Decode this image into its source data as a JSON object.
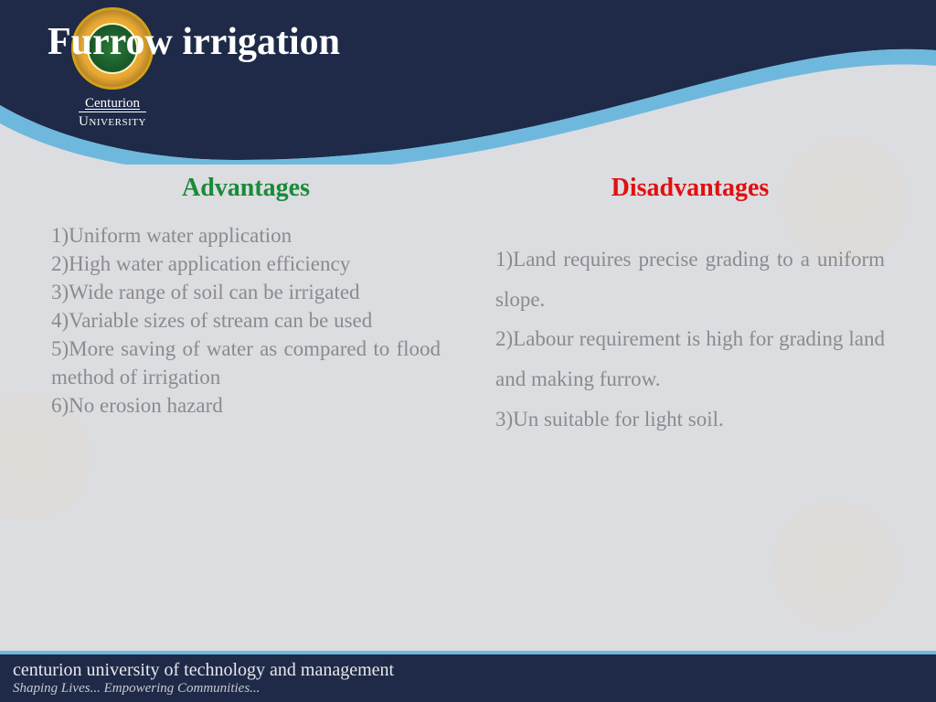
{
  "colors": {
    "header_dark": "#1e2a47",
    "swoosh_blue": "#6fb8dd",
    "body_bg": "#dcdde1",
    "title_text": "#ffffff",
    "advantages_heading": "#1a8a3a",
    "disadvantages_heading": "#e01010",
    "body_text": "#8a8a8f",
    "footer_text": "#e8e8ec",
    "footer_sub": "#c8c8d0"
  },
  "typography": {
    "title_fontsize": 42,
    "heading_fontsize": 28,
    "body_fontsize": 23,
    "footer_line1_fontsize": 20,
    "footer_line2_fontsize": 15,
    "font_family": "Georgia, serif"
  },
  "logo": {
    "line1": "Centurion",
    "line2": "University"
  },
  "title": "Furrow irrigation",
  "advantages": {
    "heading": "Advantages",
    "items_text": "1)Uniform water application\n2)High water application efficiency\n3)Wide range of soil can be irrigated\n4)Variable sizes of stream can be used\n5)More saving of water as compared to flood method of irrigation\n6)No erosion hazard"
  },
  "disadvantages": {
    "heading": "Disadvantages",
    "items_text": "1)Land requires precise grading to a uniform slope.\n2)Labour requirement is high for grading land and making furrow.\n3)Un suitable for light soil."
  },
  "footer": {
    "line1": "centurion university of technology and management",
    "line2": "Shaping Lives... Empowering Communities..."
  }
}
